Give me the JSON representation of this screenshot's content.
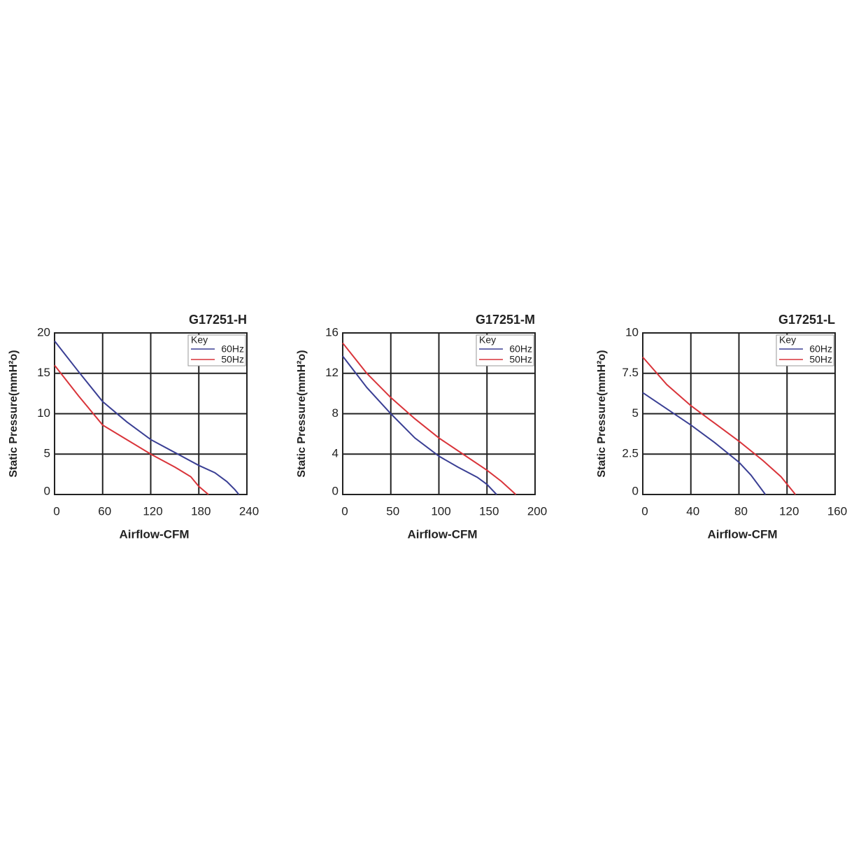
{
  "chart_data": [
    {
      "type": "line",
      "title": "G17251-H",
      "xlabel": "Airflow-CFM",
      "ylabel": "Static Pressure(mmH²o)",
      "legend_title": "Key",
      "legend": "upper right",
      "grid": true,
      "xlim": [
        0,
        240
      ],
      "xticks": [
        0,
        60,
        120,
        180,
        240
      ],
      "ylim": [
        0,
        20
      ],
      "yticks": [
        0,
        5,
        10,
        15,
        20
      ],
      "series": [
        {
          "name": "60Hz",
          "color": "#3a3f94",
          "x": [
            0,
            30,
            60,
            90,
            120,
            150,
            180,
            200,
            215,
            225,
            230
          ],
          "values": [
            19,
            15.2,
            11.5,
            9,
            6.8,
            5.2,
            3.6,
            2.7,
            1.6,
            0.6,
            0
          ]
        },
        {
          "name": "50Hz",
          "color": "#d9343a",
          "x": [
            0,
            30,
            60,
            90,
            120,
            150,
            170,
            180,
            192
          ],
          "values": [
            16,
            12.2,
            8.6,
            6.8,
            5,
            3.4,
            2.2,
            1,
            0
          ]
        }
      ]
    },
    {
      "type": "line",
      "title": "G17251-M",
      "xlabel": "Airflow-CFM",
      "ylabel": "Static Pressure(mmH²o)",
      "legend_title": "Key",
      "legend": "upper right",
      "grid": true,
      "xlim": [
        0,
        200
      ],
      "xticks": [
        0,
        50,
        100,
        150,
        200
      ],
      "ylim": [
        0,
        16
      ],
      "yticks": [
        0,
        4,
        8,
        12,
        16
      ],
      "series": [
        {
          "name": "60Hz",
          "color": "#3a3f94",
          "x": [
            0,
            25,
            50,
            75,
            100,
            120,
            140,
            150,
            160
          ],
          "values": [
            13.7,
            10.6,
            8,
            5.6,
            3.8,
            2.7,
            1.7,
            1,
            0
          ]
        },
        {
          "name": "50Hz",
          "color": "#d9343a",
          "x": [
            0,
            25,
            50,
            75,
            100,
            125,
            150,
            165,
            180
          ],
          "values": [
            15,
            12,
            9.6,
            7.5,
            5.6,
            4,
            2.4,
            1.3,
            0
          ]
        }
      ]
    },
    {
      "type": "line",
      "title": "G17251-L",
      "xlabel": "Airflow-CFM",
      "ylabel": "Static Pressure(mmH²o)",
      "legend_title": "Key",
      "legend": "upper right",
      "grid": true,
      "xlim": [
        0,
        160
      ],
      "xticks": [
        0,
        40,
        80,
        120,
        160
      ],
      "ylim": [
        0,
        10
      ],
      "yticks": [
        0,
        2.5,
        5,
        7.5,
        10
      ],
      "series": [
        {
          "name": "60Hz",
          "color": "#3a3f94",
          "x": [
            0,
            20,
            40,
            60,
            80,
            90,
            100,
            102
          ],
          "values": [
            6.3,
            5.3,
            4.3,
            3.2,
            2,
            1.2,
            0.2,
            0
          ]
        },
        {
          "name": "50Hz",
          "color": "#d9343a",
          "x": [
            0,
            20,
            40,
            60,
            80,
            100,
            115,
            127
          ],
          "values": [
            8.5,
            6.8,
            5.5,
            4.4,
            3.3,
            2.1,
            1.1,
            0
          ]
        }
      ]
    }
  ]
}
